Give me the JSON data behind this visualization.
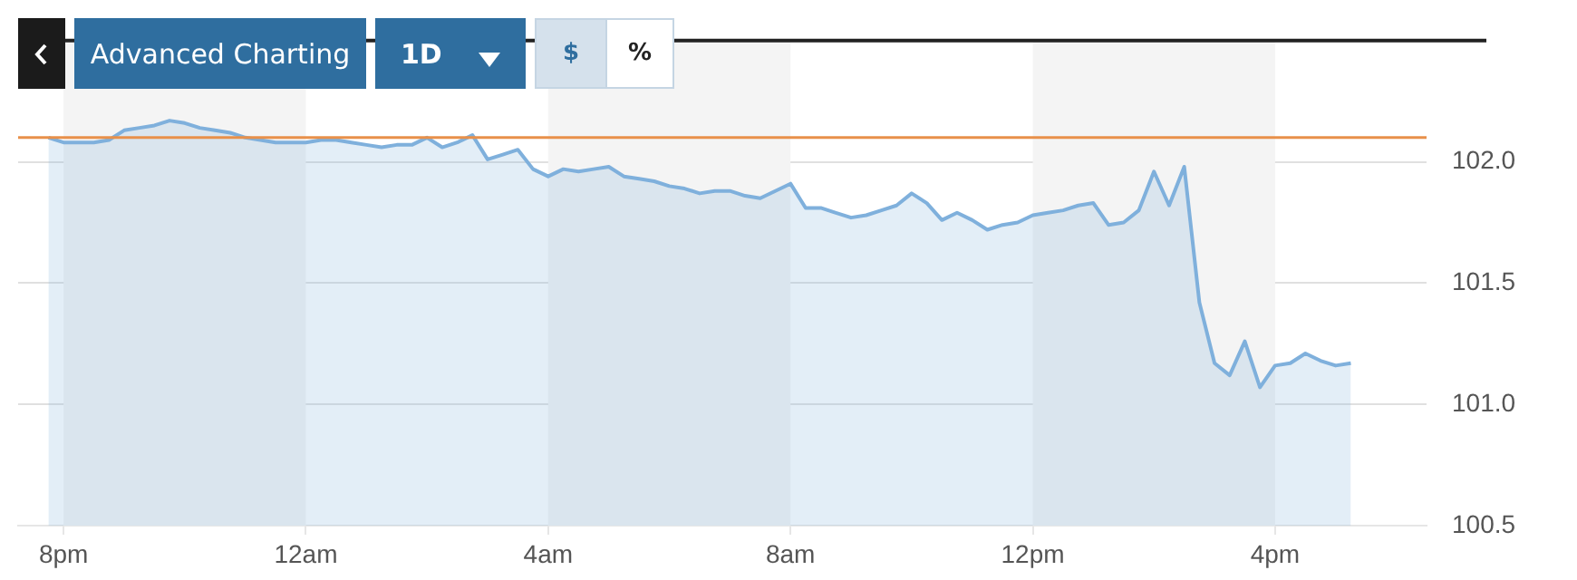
{
  "chart_data": {
    "type": "area",
    "annotations": [
      "Advanced Charting",
      "1D",
      "$",
      "%"
    ],
    "categories": [
      null,
      null,
      null,
      "8pm",
      null,
      null,
      null,
      null,
      null,
      null,
      null,
      null,
      null,
      null,
      null,
      null,
      null,
      null,
      null,
      "12am",
      null,
      null,
      null,
      null,
      null,
      null,
      null,
      null,
      null,
      null,
      null,
      null,
      null,
      null,
      null,
      "4am",
      null,
      null,
      null,
      null,
      null,
      null,
      null,
      null,
      null,
      null,
      null,
      null,
      null,
      null,
      null,
      "8am",
      null,
      null,
      null,
      null,
      null,
      null,
      null,
      null,
      null,
      null,
      null,
      null,
      null,
      null,
      null,
      "12pm",
      null,
      null,
      null,
      null,
      null,
      null,
      null,
      null,
      null,
      null,
      null,
      null,
      null,
      null,
      null,
      "4pm",
      null,
      null,
      null,
      null,
      null,
      null,
      null,
      null,
      null,
      null
    ],
    "series": [
      {
        "color": "#7fb0dc",
        "values": [
          null,
          null,
          102.1,
          102.08,
          102.08,
          102.08,
          102.09,
          102.13,
          102.14,
          102.15,
          102.17,
          102.16,
          102.14,
          102.13,
          102.12,
          102.1,
          102.09,
          102.08,
          102.08,
          102.08,
          102.09,
          102.09,
          102.08,
          102.07,
          102.06,
          102.07,
          102.07,
          102.1,
          102.06,
          102.08,
          102.11,
          102.01,
          102.03,
          102.05,
          101.97,
          101.94,
          101.97,
          101.96,
          101.97,
          101.98,
          101.94,
          101.93,
          101.92,
          101.9,
          101.89,
          101.87,
          101.88,
          101.88,
          101.86,
          101.85,
          101.88,
          101.91,
          101.81,
          101.81,
          101.79,
          101.77,
          101.78,
          101.8,
          101.82,
          101.87,
          101.83,
          101.76,
          101.79,
          101.76,
          101.72,
          101.74,
          101.75,
          101.78,
          101.79,
          101.8,
          101.82,
          101.83,
          101.74,
          101.75,
          101.8,
          101.96,
          101.82,
          101.98,
          101.42,
          101.17,
          101.12,
          101.26,
          101.07,
          101.16,
          101.17,
          101.21,
          101.18,
          101.16,
          101.17,
          null,
          null,
          null,
          null,
          null
        ]
      }
    ],
    "ylim": [
      100.5,
      102.5
    ],
    "yticks": [
      {
        "value": 100.5,
        "label": "100.5"
      },
      {
        "value": 101,
        "label": "101.0"
      },
      {
        "value": 101.5,
        "label": "101.5"
      },
      {
        "value": 102,
        "label": "102.0"
      }
    ],
    "ref_lines": [
      {
        "axis": "y",
        "value": 102.1,
        "color": "#e8904a"
      }
    ],
    "bands": [
      {
        "axis": "x",
        "from": "8pm",
        "to": "12am",
        "color": "#f4f4f4"
      },
      {
        "axis": "x",
        "from": "4am",
        "to": "8am",
        "color": "#f4f4f4"
      },
      {
        "axis": "x",
        "from": "12pm",
        "to": "4pm",
        "color": "#f4f4f4"
      }
    ],
    "grid": "y",
    "legend": false,
    "marker": "none"
  }
}
